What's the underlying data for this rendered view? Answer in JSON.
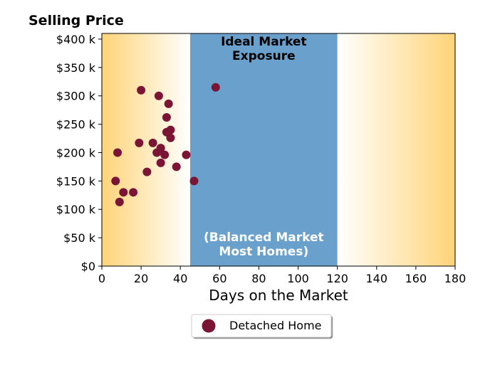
{
  "chart_data": {
    "type": "scatter",
    "title": "Selling Price",
    "xlabel": "Days on the Market",
    "ylabel": "Selling Price",
    "xlim": [
      0,
      180
    ],
    "ylim": [
      0,
      410000
    ],
    "x_ticks": [
      0,
      20,
      40,
      60,
      80,
      100,
      120,
      140,
      160,
      180
    ],
    "x_tick_labels": [
      "0",
      "20",
      "40",
      "60",
      "80",
      "100",
      "120",
      "140",
      "160",
      "180"
    ],
    "y_ticks": [
      0,
      50000,
      100000,
      150000,
      200000,
      250000,
      300000,
      350000,
      400000
    ],
    "y_tick_labels": [
      "$0",
      "$50 k",
      "$100 k",
      "$150 k",
      "$200 k",
      "$250 k",
      "$300 k",
      "$350 k",
      "$400 k"
    ],
    "grid": false,
    "legend": "bottom-center",
    "ideal_zone": {
      "x_range": [
        45,
        120
      ],
      "label_line1": "Ideal Market",
      "label_line2": "Exposure",
      "sub_line1": "(Balanced Market",
      "sub_line2": "Most Homes)",
      "color": "#6aa0cc"
    },
    "gradient_color": "#ffd478",
    "series": [
      {
        "name": "Detached Home",
        "color": "#7a1535",
        "points": [
          {
            "x": 7,
            "y": 150000
          },
          {
            "x": 8,
            "y": 200000
          },
          {
            "x": 9,
            "y": 113000
          },
          {
            "x": 11,
            "y": 130000
          },
          {
            "x": 16,
            "y": 130000
          },
          {
            "x": 19,
            "y": 217000
          },
          {
            "x": 20,
            "y": 310000
          },
          {
            "x": 23,
            "y": 166000
          },
          {
            "x": 26,
            "y": 217000
          },
          {
            "x": 28,
            "y": 200000
          },
          {
            "x": 29,
            "y": 300000
          },
          {
            "x": 30,
            "y": 182000
          },
          {
            "x": 30,
            "y": 208000
          },
          {
            "x": 32,
            "y": 196000
          },
          {
            "x": 33,
            "y": 262000
          },
          {
            "x": 33,
            "y": 236000
          },
          {
            "x": 34,
            "y": 286000
          },
          {
            "x": 35,
            "y": 240000
          },
          {
            "x": 35,
            "y": 226000
          },
          {
            "x": 38,
            "y": 175000
          },
          {
            "x": 43,
            "y": 196000
          },
          {
            "x": 47,
            "y": 150000
          },
          {
            "x": 58,
            "y": 315000
          }
        ]
      }
    ]
  }
}
